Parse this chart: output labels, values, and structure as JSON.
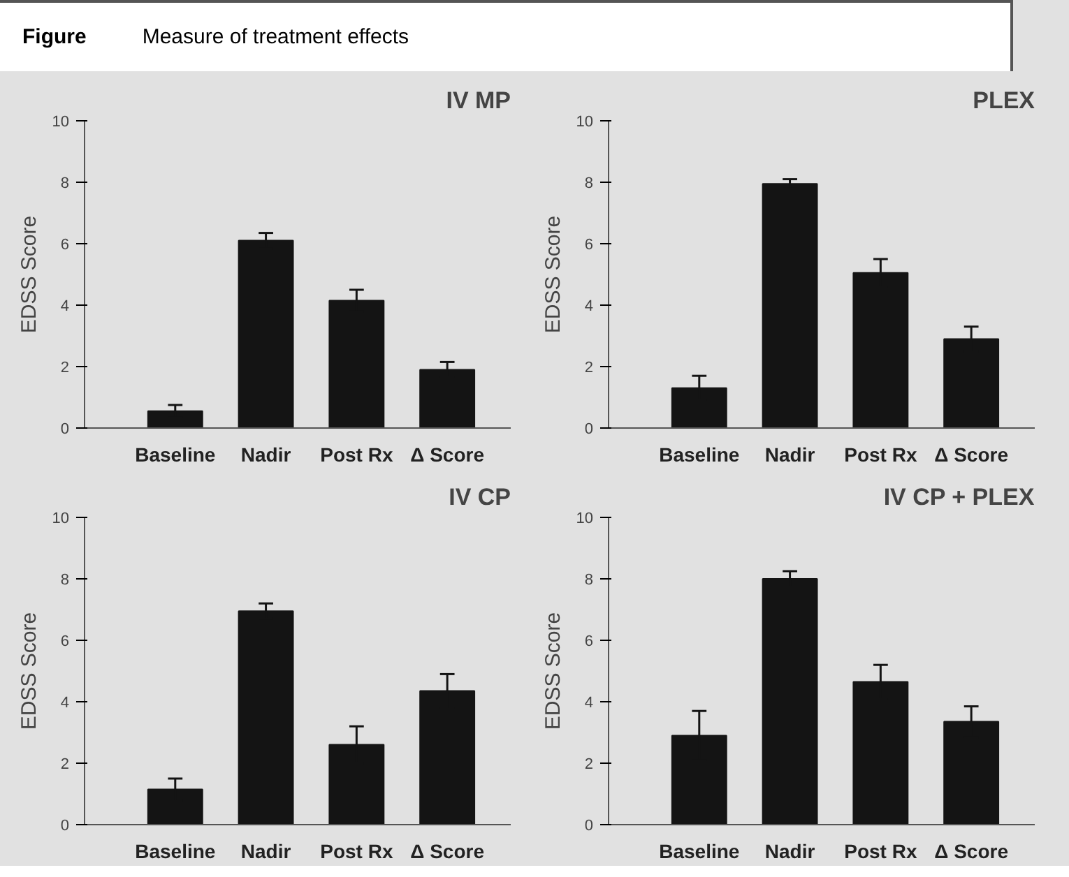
{
  "chart_data": [
    {
      "type": "other",
      "title": "Measure of treatment effects",
      "annotations": [
        "Figure"
      ]
    },
    {
      "type": "bar",
      "title": "IV MP",
      "ylabel": "EDSS Score",
      "categories": [
        "Baseline",
        "Nadir",
        "Post Rx",
        "Δ Score"
      ],
      "values": [
        0.55,
        6.1,
        4.15,
        1.9
      ],
      "errors": [
        0.2,
        0.25,
        0.35,
        0.25
      ],
      "color": "#141414",
      "ylim": [
        0,
        10
      ],
      "yticks": [
        0,
        2,
        4,
        6,
        8,
        10
      ]
    },
    {
      "type": "bar",
      "title": "PLEX",
      "ylabel": "EDSS Score",
      "categories": [
        "Baseline",
        "Nadir",
        "Post Rx",
        "Δ Score"
      ],
      "values": [
        1.3,
        7.95,
        5.05,
        2.9
      ],
      "errors": [
        0.4,
        0.15,
        0.45,
        0.4
      ],
      "color": "#141414",
      "ylim": [
        0,
        10
      ],
      "yticks": [
        0,
        2,
        4,
        6,
        8,
        10
      ]
    },
    {
      "type": "bar",
      "title": "IV CP",
      "ylabel": "EDSS Score",
      "categories": [
        "Baseline",
        "Nadir",
        "Post Rx",
        "Δ Score"
      ],
      "values": [
        1.15,
        6.95,
        2.6,
        4.35
      ],
      "errors": [
        0.35,
        0.25,
        0.6,
        0.55
      ],
      "color": "#141414",
      "ylim": [
        0,
        10
      ],
      "yticks": [
        0,
        2,
        4,
        6,
        8,
        10
      ]
    },
    {
      "type": "bar",
      "title": "IV CP + PLEX",
      "ylabel": "EDSS Score",
      "categories": [
        "Baseline",
        "Nadir",
        "Post Rx",
        "Δ Score"
      ],
      "values": [
        2.9,
        8.0,
        4.65,
        3.35
      ],
      "errors": [
        0.8,
        0.25,
        0.55,
        0.5
      ],
      "color": "#141414",
      "ylim": [
        0,
        10
      ],
      "yticks": [
        0,
        2,
        4,
        6,
        8,
        10
      ]
    }
  ]
}
